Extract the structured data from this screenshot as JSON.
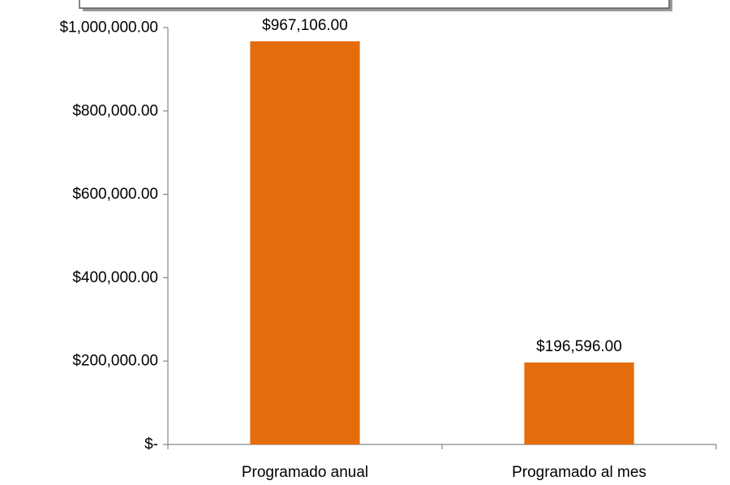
{
  "chart_data": {
    "type": "bar",
    "categories": [
      "Programado anual",
      "Programado al mes"
    ],
    "values": [
      967106,
      196596
    ],
    "data_labels": [
      "$967,106.00",
      "$196,596.00"
    ],
    "title": "",
    "xlabel": "",
    "ylabel": "",
    "ylim": [
      0,
      1000000
    ],
    "yticks": [
      0,
      200000,
      400000,
      600000,
      800000,
      1000000
    ],
    "ytick_labels": [
      "$-",
      "$200,000.00",
      "$400,000.00",
      "$600,000.00",
      "$800,000.00",
      "$1,000,000.00"
    ],
    "grid": false,
    "legend": "none",
    "colors": {
      "bar": "#e46c0a",
      "axis": "#868686",
      "title_box_border": "#5a5a5a",
      "title_box_shadow": "#9a9a9a"
    }
  }
}
